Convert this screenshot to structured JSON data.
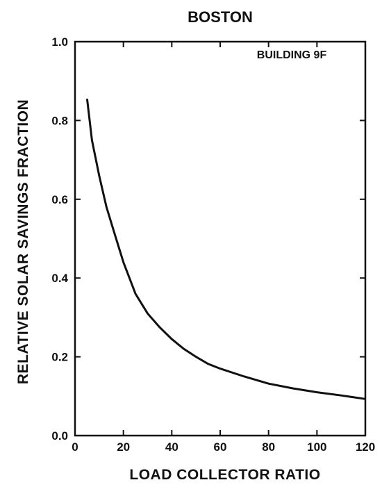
{
  "chart_data": {
    "type": "line",
    "title": "BOSTON",
    "annotation": "BUILDING 9F",
    "xlabel": "LOAD COLLECTOR RATIO",
    "ylabel": "RELATIVE SOLAR SAVINGS FRACTION",
    "xlim": [
      0,
      120
    ],
    "ylim": [
      0.0,
      1.0
    ],
    "x_ticks": [
      "0",
      "20",
      "40",
      "60",
      "80",
      "100",
      "120"
    ],
    "y_ticks": [
      "0.0",
      "0.2",
      "0.4",
      "0.6",
      "0.8",
      "1.0"
    ],
    "grid": false,
    "series": [
      {
        "x": [
          5,
          7,
          10,
          13,
          16,
          20,
          25,
          30,
          35,
          40,
          45,
          50,
          55,
          60,
          70,
          80,
          90,
          100,
          110,
          120
        ],
        "y": [
          0.855,
          0.75,
          0.66,
          0.58,
          0.52,
          0.44,
          0.36,
          0.31,
          0.275,
          0.245,
          0.22,
          0.2,
          0.182,
          0.17,
          0.15,
          0.132,
          0.12,
          0.11,
          0.102,
          0.093
        ]
      }
    ]
  }
}
